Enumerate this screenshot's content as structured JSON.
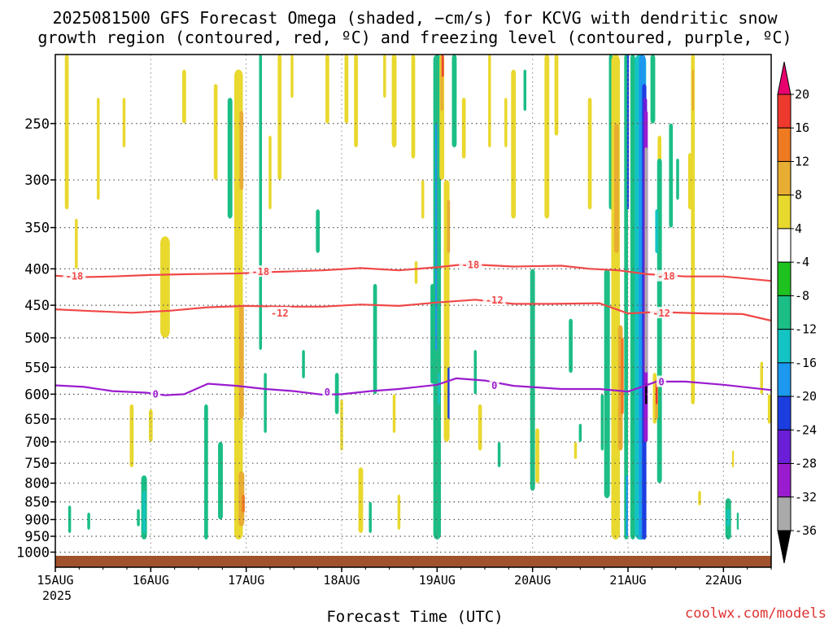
{
  "chart_data": {
    "type": "heatmap",
    "title_lines": [
      "2025081500 GFS Forecast Omega (shaded, −cm/s) for KCVG with dendritic snow",
      "growth region (contoured, red, ºC) and freezing level (contoured, purple, ºC)"
    ],
    "xlabel": "Forecast Time (UTC)",
    "ylabel": "",
    "credit": "coolwx.com/models",
    "x_ticks": [
      "15AUG",
      "16AUG",
      "17AUG",
      "18AUG",
      "19AUG",
      "20AUG",
      "21AUG",
      "22AUG"
    ],
    "x_year": "2025",
    "y_ticks": [
      250,
      300,
      350,
      400,
      450,
      500,
      550,
      600,
      650,
      700,
      750,
      800,
      850,
      900,
      950,
      1000
    ],
    "y_range_hpa": [
      1050,
      200
    ],
    "x_range_days": [
      0,
      7.5
    ],
    "y_scale": "log-pressure",
    "grid": true,
    "ground_color": "#a0522d",
    "colorbar": {
      "labels": [
        "20",
        "16",
        "12",
        "8",
        "4",
        "-4",
        "-8",
        "-12",
        "-16",
        "-20",
        "-24",
        "-28",
        "-32",
        "-36"
      ],
      "colors": [
        "#e8006e",
        "#ee3a2e",
        "#f07a22",
        "#e8ad33",
        "#e9d82e",
        "#ffffff",
        "#1fc21f",
        "#1bbe85",
        "#14c4c4",
        "#1c98ee",
        "#1c3ee0",
        "#6a1ed8",
        "#9b1ccf",
        "#aaaaaa",
        "#000000"
      ]
    },
    "contours": [
      {
        "label": "-18",
        "color": "#f04848",
        "points": [
          [
            0,
            409
          ],
          [
            0.25,
            411
          ],
          [
            0.6,
            410
          ],
          [
            1.0,
            408
          ],
          [
            1.4,
            407
          ],
          [
            1.9,
            406
          ],
          [
            2.3,
            404
          ],
          [
            2.8,
            402
          ],
          [
            3.2,
            399
          ],
          [
            3.6,
            402
          ],
          [
            4.0,
            398
          ],
          [
            4.3,
            394
          ],
          [
            4.8,
            397
          ],
          [
            5.3,
            396
          ],
          [
            5.6,
            400
          ],
          [
            5.9,
            402
          ],
          [
            6.2,
            407
          ],
          [
            6.6,
            410
          ],
          [
            7.0,
            410
          ],
          [
            7.5,
            416
          ]
        ],
        "label_positions": [
          [
            0.2,
            410
          ],
          [
            2.15,
            404
          ],
          [
            4.35,
            395
          ],
          [
            6.4,
            410
          ]
        ]
      },
      {
        "label": "-12",
        "color": "#f04848",
        "points": [
          [
            0,
            456
          ],
          [
            0.3,
            458
          ],
          [
            0.8,
            461
          ],
          [
            1.2,
            458
          ],
          [
            1.6,
            453
          ],
          [
            2.0,
            451
          ],
          [
            2.4,
            452
          ],
          [
            2.8,
            452
          ],
          [
            3.2,
            449
          ],
          [
            3.6,
            451
          ],
          [
            4.0,
            446
          ],
          [
            4.4,
            442
          ],
          [
            4.8,
            448
          ],
          [
            5.2,
            448
          ],
          [
            5.7,
            447
          ],
          [
            6.0,
            462
          ],
          [
            6.3,
            460
          ],
          [
            6.8,
            462
          ],
          [
            7.2,
            463
          ],
          [
            7.5,
            473
          ]
        ],
        "label_positions": [
          [
            2.35,
            462
          ],
          [
            4.6,
            443
          ],
          [
            6.35,
            462
          ]
        ]
      },
      {
        "label": "0",
        "color": "#9b1ccf",
        "points": [
          [
            0,
            583
          ],
          [
            0.3,
            586
          ],
          [
            0.6,
            594
          ],
          [
            0.95,
            597
          ],
          [
            1.15,
            602
          ],
          [
            1.35,
            600
          ],
          [
            1.6,
            580
          ],
          [
            1.9,
            584
          ],
          [
            2.2,
            590
          ],
          [
            2.5,
            594
          ],
          [
            2.8,
            601
          ],
          [
            3.0,
            600
          ],
          [
            3.3,
            594
          ],
          [
            3.6,
            590
          ],
          [
            4.0,
            582
          ],
          [
            4.2,
            570
          ],
          [
            4.5,
            574
          ],
          [
            4.8,
            584
          ],
          [
            5.3,
            590
          ],
          [
            5.7,
            590
          ],
          [
            6.0,
            595
          ],
          [
            6.3,
            576
          ],
          [
            6.6,
            576
          ],
          [
            7.0,
            582
          ],
          [
            7.5,
            592
          ]
        ],
        "label_positions": [
          [
            1.05,
            600
          ],
          [
            2.85,
            596
          ],
          [
            4.6,
            584
          ],
          [
            6.35,
            577
          ]
        ]
      }
    ],
    "omega_cells": [
      {
        "t": 0.12,
        "p1": 200,
        "p2": 330,
        "w": 0.04,
        "v": 4
      },
      {
        "t": 0.22,
        "p1": 340,
        "p2": 400,
        "w": 0.03,
        "v": 4
      },
      {
        "t": 0.15,
        "p1": 860,
        "p2": 940,
        "w": 0.03,
        "v": -8
      },
      {
        "t": 0.35,
        "p1": 880,
        "p2": 930,
        "w": 0.03,
        "v": -8
      },
      {
        "t": 0.45,
        "p1": 230,
        "p2": 320,
        "w": 0.03,
        "v": 4
      },
      {
        "t": 0.72,
        "p1": 230,
        "p2": 270,
        "w": 0.03,
        "v": 4
      },
      {
        "t": 0.8,
        "p1": 620,
        "p2": 760,
        "w": 0.04,
        "v": 4
      },
      {
        "t": 0.87,
        "p1": 870,
        "p2": 920,
        "w": 0.03,
        "v": -8
      },
      {
        "t": 0.93,
        "p1": 780,
        "p2": 960,
        "w": 0.06,
        "v": -8
      },
      {
        "t": 0.93,
        "p1": 820,
        "p2": 940,
        "w": 0.03,
        "v": -12
      },
      {
        "t": 1.15,
        "p1": 360,
        "p2": 500,
        "w": 0.1,
        "v": 4
      },
      {
        "t": 1.0,
        "p1": 630,
        "p2": 700,
        "w": 0.04,
        "v": 4
      },
      {
        "t": 1.35,
        "p1": 210,
        "p2": 250,
        "w": 0.04,
        "v": 4
      },
      {
        "t": 1.58,
        "p1": 620,
        "p2": 960,
        "w": 0.04,
        "v": -8
      },
      {
        "t": 1.68,
        "p1": 220,
        "p2": 300,
        "w": 0.04,
        "v": 4
      },
      {
        "t": 1.73,
        "p1": 700,
        "p2": 900,
        "w": 0.05,
        "v": -8
      },
      {
        "t": 1.83,
        "p1": 230,
        "p2": 340,
        "w": 0.05,
        "v": -8
      },
      {
        "t": 1.92,
        "p1": 210,
        "p2": 960,
        "w": 0.09,
        "v": 4
      },
      {
        "t": 1.95,
        "p1": 240,
        "p2": 310,
        "w": 0.04,
        "v": 8
      },
      {
        "t": 1.95,
        "p1": 450,
        "p2": 650,
        "w": 0.05,
        "v": 8
      },
      {
        "t": 1.95,
        "p1": 770,
        "p2": 920,
        "w": 0.06,
        "v": 8
      },
      {
        "t": 1.97,
        "p1": 830,
        "p2": 880,
        "w": 0.03,
        "v": 12
      },
      {
        "t": 2.15,
        "p1": 200,
        "p2": 520,
        "w": 0.03,
        "v": -8
      },
      {
        "t": 2.2,
        "p1": 560,
        "p2": 680,
        "w": 0.03,
        "v": -8
      },
      {
        "t": 2.25,
        "p1": 260,
        "p2": 330,
        "w": 0.03,
        "v": 4
      },
      {
        "t": 2.35,
        "p1": 200,
        "p2": 300,
        "w": 0.04,
        "v": 4
      },
      {
        "t": 2.48,
        "p1": 200,
        "p2": 230,
        "w": 0.03,
        "v": 4
      },
      {
        "t": 2.6,
        "p1": 520,
        "p2": 570,
        "w": 0.03,
        "v": -8
      },
      {
        "t": 2.75,
        "p1": 330,
        "p2": 380,
        "w": 0.04,
        "v": -8
      },
      {
        "t": 2.85,
        "p1": 200,
        "p2": 250,
        "w": 0.04,
        "v": 4
      },
      {
        "t": 2.95,
        "p1": 560,
        "p2": 640,
        "w": 0.04,
        "v": -8
      },
      {
        "t": 3.0,
        "p1": 610,
        "p2": 720,
        "w": 0.03,
        "v": 4
      },
      {
        "t": 3.05,
        "p1": 200,
        "p2": 250,
        "w": 0.04,
        "v": 4
      },
      {
        "t": 3.15,
        "p1": 200,
        "p2": 270,
        "w": 0.04,
        "v": 4
      },
      {
        "t": 3.2,
        "p1": 760,
        "p2": 940,
        "w": 0.05,
        "v": 4
      },
      {
        "t": 3.3,
        "p1": 850,
        "p2": 940,
        "w": 0.03,
        "v": -8
      },
      {
        "t": 3.35,
        "p1": 420,
        "p2": 600,
        "w": 0.04,
        "v": -8
      },
      {
        "t": 3.45,
        "p1": 200,
        "p2": 230,
        "w": 0.03,
        "v": 4
      },
      {
        "t": 3.55,
        "p1": 200,
        "p2": 270,
        "w": 0.05,
        "v": 4
      },
      {
        "t": 3.55,
        "p1": 600,
        "p2": 680,
        "w": 0.03,
        "v": 4
      },
      {
        "t": 3.6,
        "p1": 830,
        "p2": 930,
        "w": 0.03,
        "v": 4
      },
      {
        "t": 3.75,
        "p1": 200,
        "p2": 280,
        "w": 0.04,
        "v": 4
      },
      {
        "t": 3.78,
        "p1": 390,
        "p2": 420,
        "w": 0.03,
        "v": 4
      },
      {
        "t": 3.85,
        "p1": 300,
        "p2": 340,
        "w": 0.03,
        "v": 4
      },
      {
        "t": 3.95,
        "p1": 420,
        "p2": 580,
        "w": 0.04,
        "v": -8
      },
      {
        "t": 4.0,
        "p1": 200,
        "p2": 960,
        "w": 0.08,
        "v": -8
      },
      {
        "t": 3.99,
        "p1": 250,
        "p2": 520,
        "w": 0.02,
        "v": -16
      },
      {
        "t": 4.02,
        "p1": 560,
        "p2": 620,
        "w": 0.02,
        "v": -12
      },
      {
        "t": 4.05,
        "p1": 200,
        "p2": 300,
        "w": 0.05,
        "v": 4
      },
      {
        "t": 4.05,
        "p1": 200,
        "p2": 240,
        "w": 0.03,
        "v": 8
      },
      {
        "t": 4.06,
        "p1": 200,
        "p2": 215,
        "w": 0.02,
        "v": 16
      },
      {
        "t": 4.1,
        "p1": 300,
        "p2": 700,
        "w": 0.06,
        "v": 4
      },
      {
        "t": 4.12,
        "p1": 320,
        "p2": 380,
        "w": 0.03,
        "v": 8
      },
      {
        "t": 4.12,
        "p1": 550,
        "p2": 650,
        "w": 0.02,
        "v": -20
      },
      {
        "t": 4.18,
        "p1": 200,
        "p2": 270,
        "w": 0.05,
        "v": -8
      },
      {
        "t": 4.28,
        "p1": 230,
        "p2": 280,
        "w": 0.04,
        "v": 4
      },
      {
        "t": 4.4,
        "p1": 520,
        "p2": 600,
        "w": 0.03,
        "v": -8
      },
      {
        "t": 4.45,
        "p1": 620,
        "p2": 720,
        "w": 0.04,
        "v": 4
      },
      {
        "t": 4.55,
        "p1": 200,
        "p2": 270,
        "w": 0.03,
        "v": 4
      },
      {
        "t": 4.65,
        "p1": 700,
        "p2": 760,
        "w": 0.03,
        "v": -8
      },
      {
        "t": 4.72,
        "p1": 230,
        "p2": 270,
        "w": 0.03,
        "v": 4
      },
      {
        "t": 4.8,
        "p1": 210,
        "p2": 340,
        "w": 0.05,
        "v": 4
      },
      {
        "t": 4.92,
        "p1": 210,
        "p2": 240,
        "w": 0.03,
        "v": -8
      },
      {
        "t": 5.0,
        "p1": 400,
        "p2": 820,
        "w": 0.05,
        "v": -8
      },
      {
        "t": 5.05,
        "p1": 670,
        "p2": 800,
        "w": 0.04,
        "v": 4
      },
      {
        "t": 5.15,
        "p1": 200,
        "p2": 340,
        "w": 0.05,
        "v": 4
      },
      {
        "t": 5.25,
        "p1": 200,
        "p2": 260,
        "w": 0.04,
        "v": 4
      },
      {
        "t": 5.4,
        "p1": 470,
        "p2": 560,
        "w": 0.04,
        "v": -8
      },
      {
        "t": 5.45,
        "p1": 700,
        "p2": 740,
        "w": 0.03,
        "v": 4
      },
      {
        "t": 5.5,
        "p1": 660,
        "p2": 700,
        "w": 0.03,
        "v": -8
      },
      {
        "t": 5.6,
        "p1": 230,
        "p2": 330,
        "w": 0.04,
        "v": 4
      },
      {
        "t": 5.73,
        "p1": 600,
        "p2": 720,
        "w": 0.03,
        "v": -8
      },
      {
        "t": 5.78,
        "p1": 400,
        "p2": 840,
        "w": 0.06,
        "v": -8
      },
      {
        "t": 5.82,
        "p1": 200,
        "p2": 330,
        "w": 0.04,
        "v": -8
      },
      {
        "t": 5.87,
        "p1": 200,
        "p2": 960,
        "w": 0.09,
        "v": 4
      },
      {
        "t": 5.88,
        "p1": 250,
        "p2": 380,
        "w": 0.05,
        "v": 8
      },
      {
        "t": 5.92,
        "p1": 480,
        "p2": 720,
        "w": 0.05,
        "v": 8
      },
      {
        "t": 5.94,
        "p1": 500,
        "p2": 640,
        "w": 0.03,
        "v": 12
      },
      {
        "t": 5.98,
        "p1": 200,
        "p2": 960,
        "w": 0.04,
        "v": -8
      },
      {
        "t": 6.0,
        "p1": 200,
        "p2": 330,
        "w": 0.02,
        "v": -20
      },
      {
        "t": 5.99,
        "p1": 780,
        "p2": 950,
        "w": 0.02,
        "v": -16
      },
      {
        "t": 6.05,
        "p1": 200,
        "p2": 960,
        "w": 0.05,
        "v": -8
      },
      {
        "t": 6.13,
        "p1": 200,
        "p2": 960,
        "w": 0.12,
        "v": -12
      },
      {
        "t": 6.15,
        "p1": 200,
        "p2": 960,
        "w": 0.07,
        "v": -16
      },
      {
        "t": 6.17,
        "p1": 220,
        "p2": 960,
        "w": 0.045,
        "v": -20
      },
      {
        "t": 6.18,
        "p1": 230,
        "p2": 700,
        "w": 0.04,
        "v": -24
      },
      {
        "t": 6.19,
        "p1": 240,
        "p2": 700,
        "w": 0.035,
        "v": -28
      },
      {
        "t": 6.19,
        "p1": 270,
        "p2": 560,
        "w": 0.03,
        "v": -32
      },
      {
        "t": 6.19,
        "p1": 580,
        "p2": 620,
        "w": 0.02,
        "v": -36
      },
      {
        "t": 6.26,
        "p1": 200,
        "p2": 250,
        "w": 0.05,
        "v": -8
      },
      {
        "t": 6.33,
        "p1": 260,
        "p2": 320,
        "w": 0.04,
        "v": 4
      },
      {
        "t": 6.33,
        "p1": 280,
        "p2": 800,
        "w": 0.05,
        "v": -8
      },
      {
        "t": 6.3,
        "p1": 330,
        "p2": 380,
        "w": 0.03,
        "v": -12
      },
      {
        "t": 6.28,
        "p1": 560,
        "p2": 660,
        "w": 0.04,
        "v": 4
      },
      {
        "t": 6.3,
        "p1": 570,
        "p2": 650,
        "w": 0.03,
        "v": 8
      },
      {
        "t": 6.3,
        "p1": 580,
        "p2": 620,
        "w": 0.02,
        "v": 16
      },
      {
        "t": 6.45,
        "p1": 250,
        "p2": 350,
        "w": 0.04,
        "v": -8
      },
      {
        "t": 6.52,
        "p1": 280,
        "p2": 320,
        "w": 0.03,
        "v": -8
      },
      {
        "t": 6.65,
        "p1": 275,
        "p2": 330,
        "w": 0.04,
        "v": 4
      },
      {
        "t": 6.68,
        "p1": 200,
        "p2": 620,
        "w": 0.04,
        "v": 4
      },
      {
        "t": 6.68,
        "p1": 210,
        "p2": 240,
        "w": 0.02,
        "v": 8
      },
      {
        "t": 6.75,
        "p1": 820,
        "p2": 860,
        "w": 0.03,
        "v": 4
      },
      {
        "t": 7.4,
        "p1": 540,
        "p2": 600,
        "w": 0.03,
        "v": 4
      },
      {
        "t": 7.48,
        "p1": 600,
        "p2": 660,
        "w": 0.03,
        "v": 4
      },
      {
        "t": 7.1,
        "p1": 720,
        "p2": 760,
        "w": 0.02,
        "v": 4
      },
      {
        "t": 7.05,
        "p1": 840,
        "p2": 960,
        "w": 0.06,
        "v": -8
      },
      {
        "t": 7.05,
        "p1": 870,
        "p2": 920,
        "w": 0.03,
        "v": -12
      },
      {
        "t": 7.15,
        "p1": 880,
        "p2": 930,
        "w": 0.02,
        "v": -8
      }
    ]
  }
}
